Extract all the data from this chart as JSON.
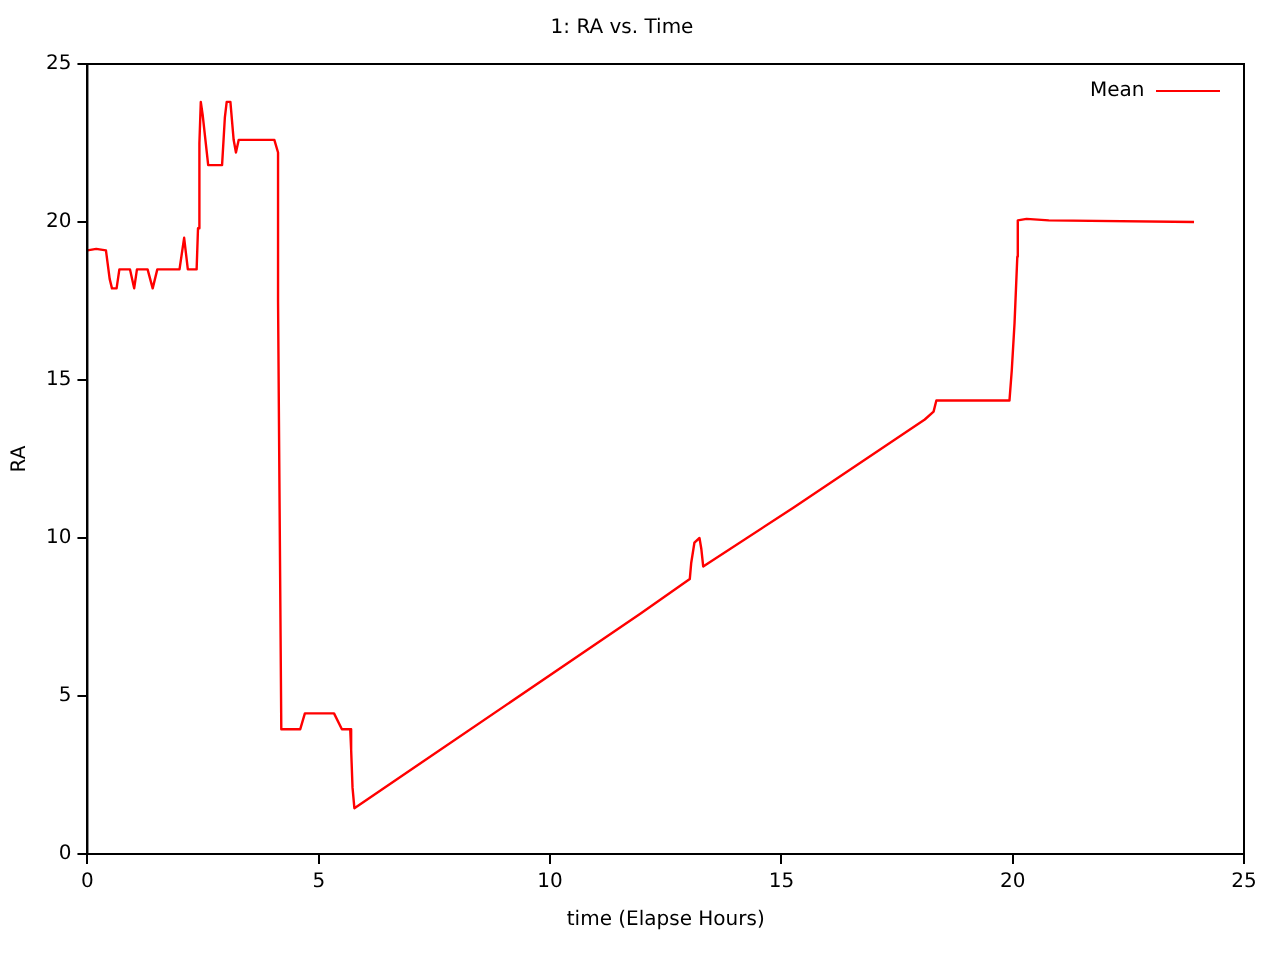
{
  "chart_data": {
    "type": "line",
    "title": "1: RA vs. Time",
    "xlabel": "time (Elapse Hours)",
    "ylabel": "RA",
    "xlim": [
      0,
      25
    ],
    "xticks": [
      0,
      5,
      10,
      15,
      20,
      25
    ],
    "ylim": [
      0,
      25
    ],
    "yticks": [
      0,
      5,
      10,
      15,
      20,
      25
    ],
    "grid": false,
    "legend": "top right",
    "marker": "none",
    "line_style": "solid",
    "series": [
      {
        "name": "Mean",
        "color": "#ff0000",
        "x": [
          0,
          0.19,
          0.4,
          0.48,
          0.53,
          0.63,
          0.69,
          0.92,
          1.01,
          1.07,
          1.3,
          1.41,
          1.51,
          1.99,
          2.09,
          2.17,
          2.36,
          2.39,
          2.42,
          2.45,
          2.49,
          2.61,
          2.91,
          2.97,
          3.01,
          3.09,
          3.16,
          3.21,
          3.27,
          4.04,
          4.12,
          4.12,
          4.19,
          4.6,
          4.7,
          5.33,
          5.5,
          5.68,
          5.7,
          5.73,
          5.77,
          11.95,
          13.02,
          13.05,
          13.12,
          13.23,
          13.27,
          13.31,
          15.25,
          18.1,
          18.29,
          18.35,
          19.93,
          19.98,
          20.04,
          20.1,
          20.11,
          20.3,
          20.78,
          23.92
        ],
        "values": [
          19.1,
          19.15,
          19.1,
          18.2,
          17.9,
          17.9,
          18.5,
          18.5,
          17.9,
          18.5,
          18.5,
          17.9,
          18.5,
          18.5,
          19.5,
          18.5,
          18.5,
          19.8,
          22.5,
          23.8,
          23.4,
          21.8,
          21.8,
          23.3,
          23.8,
          23.8,
          22.6,
          22.2,
          22.6,
          22.6,
          22.2,
          17.5,
          3.95,
          3.95,
          4.45,
          4.45,
          3.95,
          3.95,
          3.3,
          2.1,
          1.45,
          7.6,
          8.7,
          9.2,
          9.85,
          10,
          9.65,
          9.1,
          10.95,
          13.75,
          14,
          14.35,
          14.35,
          15.3,
          16.8,
          18.9,
          20.05,
          20.1,
          20.05,
          20
        ]
      }
    ]
  }
}
